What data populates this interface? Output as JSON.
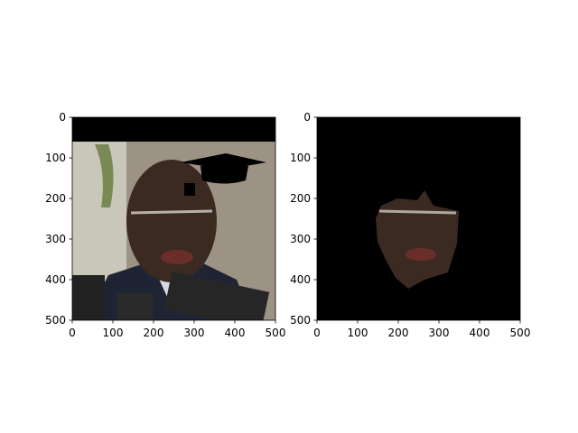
{
  "chart_data": [
    {
      "type": "image",
      "xlim": [
        0,
        500
      ],
      "ylim": [
        500,
        0
      ],
      "xticks": [
        0,
        100,
        200,
        300,
        400,
        500
      ],
      "yticks": [
        0,
        100,
        200,
        300,
        400,
        500
      ]
    },
    {
      "type": "image",
      "xlim": [
        0,
        500
      ],
      "ylim": [
        500,
        0
      ],
      "xticks": [
        0,
        100,
        200,
        300,
        400,
        500
      ],
      "yticks": [
        0,
        100,
        200,
        300,
        400,
        500
      ]
    }
  ]
}
